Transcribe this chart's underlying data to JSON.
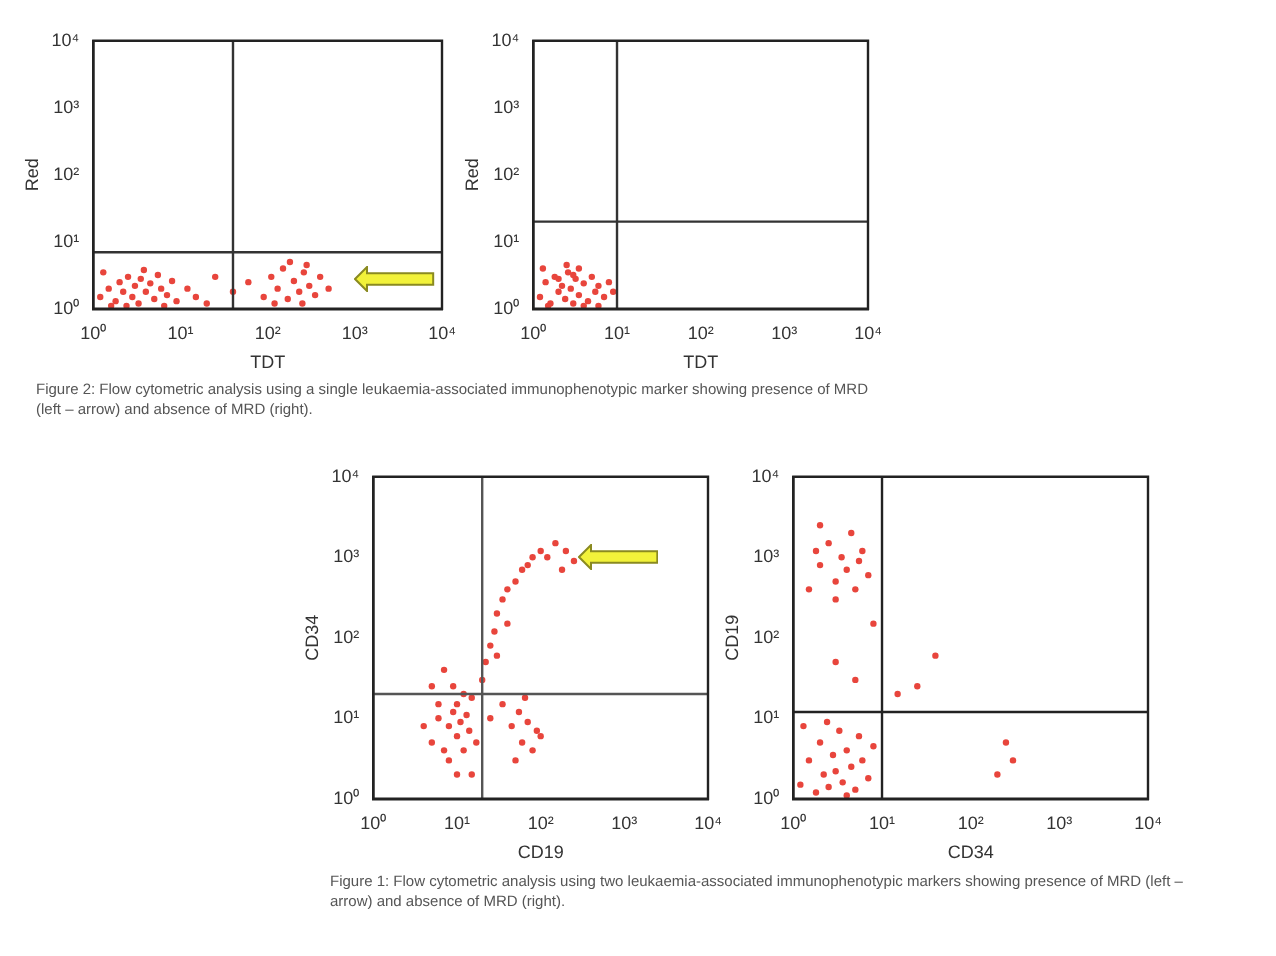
{
  "chart_data": [
    {
      "type": "scatter",
      "xlabel": "TDT",
      "ylabel": "Red",
      "log": "xy",
      "grid": false,
      "legend": false,
      "marker": "circle",
      "xlim": [
        1,
        10000
      ],
      "ylim": [
        1,
        10000
      ],
      "xticks": [
        {
          "value": 1,
          "label": "10⁰"
        },
        {
          "value": 10,
          "label": "10¹"
        },
        {
          "value": 100,
          "label": "10²"
        },
        {
          "value": 1000,
          "label": "10³"
        },
        {
          "value": 10000,
          "label": "10⁴"
        }
      ],
      "yticks": [
        {
          "value": 1,
          "label": "10⁰"
        },
        {
          "value": 10,
          "label": "10¹"
        },
        {
          "value": 100,
          "label": "10²"
        },
        {
          "value": 1000,
          "label": "10³"
        },
        {
          "value": 10000,
          "label": "10⁴"
        }
      ],
      "ref_lines": [
        {
          "axis": "x",
          "value": 40,
          "color": "#333333"
        },
        {
          "axis": "y",
          "value": 7,
          "color": "#333333"
        }
      ],
      "annotations": [
        "Figure 2: Flow cytometric analysis using a single leukaemia-associated immunophenotypic marker showing presence of MRD (left – arrow) and absence of MRD (right)."
      ],
      "series": [
        {
          "color": "#e8453c",
          "x": [
            1.2,
            1.5,
            1.8,
            2,
            2.2,
            2.5,
            2.8,
            3,
            3.3,
            3.5,
            4,
            4.5,
            5,
            5.5,
            6,
            7,
            8,
            9,
            12,
            1.3,
            1.6,
            2.4,
            3.8,
            6.5,
            15,
            25,
            40,
            60,
            90,
            110,
            130,
            150,
            170,
            200,
            230,
            260,
            300,
            350,
            400,
            120,
            180,
            250,
            280,
            20,
            500
          ],
          "values": [
            1.5,
            2,
            1.3,
            2.5,
            1.8,
            3,
            1.5,
            2.2,
            1.2,
            2.8,
            1.8,
            2.4,
            1.4,
            3.2,
            2,
            1.6,
            2.6,
            1.3,
            2,
            3.5,
            1.1,
            1.1,
            3.8,
            1.1,
            1.5,
            3,
            1.8,
            2.5,
            1.5,
            3,
            2,
            4,
            1.4,
            2.6,
            1.8,
            3.5,
            2.2,
            1.6,
            3,
            1.2,
            5,
            1.2,
            4.5,
            1.2,
            2
          ]
        }
      ]
    },
    {
      "type": "scatter",
      "xlabel": "TDT",
      "ylabel": "Red",
      "log": "xy",
      "grid": false,
      "legend": false,
      "marker": "circle",
      "xlim": [
        1,
        10000
      ],
      "ylim": [
        1,
        10000
      ],
      "xticks": [
        {
          "value": 1,
          "label": "10⁰"
        },
        {
          "value": 10,
          "label": "10¹"
        },
        {
          "value": 100,
          "label": "10²"
        },
        {
          "value": 1000,
          "label": "10³"
        },
        {
          "value": 10000,
          "label": "10⁴"
        }
      ],
      "yticks": [
        {
          "value": 1,
          "label": "10⁰"
        },
        {
          "value": 10,
          "label": "10¹"
        },
        {
          "value": 100,
          "label": "10²"
        },
        {
          "value": 1000,
          "label": "10³"
        },
        {
          "value": 10000,
          "label": "10⁴"
        }
      ],
      "ref_lines": [
        {
          "axis": "x",
          "value": 10,
          "color": "#333333"
        },
        {
          "axis": "y",
          "value": 20,
          "color": "#333333"
        }
      ],
      "series": [
        {
          "color": "#e8453c",
          "x": [
            1.2,
            1.4,
            1.6,
            1.8,
            2,
            2.2,
            2.4,
            2.6,
            2.8,
            3,
            3.2,
            3.5,
            4,
            4.5,
            5,
            5.5,
            6,
            7,
            8,
            1.3,
            2.5,
            3.5,
            1.5,
            4,
            6,
            2,
            3,
            9
          ],
          "values": [
            1.5,
            2.5,
            1.2,
            3,
            1.8,
            2.2,
            1.4,
            3.5,
            2,
            1.2,
            2.8,
            1.6,
            2.4,
            1.3,
            3,
            1.8,
            2.2,
            1.5,
            2.5,
            4,
            4.5,
            4,
            1.1,
            1.1,
            1.1,
            2.8,
            3.2,
            1.8
          ]
        }
      ]
    },
    {
      "type": "scatter",
      "xlabel": "CD19",
      "ylabel": "CD34",
      "log": "xy",
      "grid": false,
      "legend": false,
      "marker": "circle",
      "xlim": [
        1,
        10000
      ],
      "ylim": [
        1,
        10000
      ],
      "xticks": [
        {
          "value": 1,
          "label": "10⁰"
        },
        {
          "value": 10,
          "label": "10¹"
        },
        {
          "value": 100,
          "label": "10²"
        },
        {
          "value": 1000,
          "label": "10³"
        },
        {
          "value": 10000,
          "label": "10⁴"
        }
      ],
      "yticks": [
        {
          "value": 1,
          "label": "10⁰"
        },
        {
          "value": 10,
          "label": "10¹"
        },
        {
          "value": 100,
          "label": "10²"
        },
        {
          "value": 1000,
          "label": "10³"
        },
        {
          "value": 10000,
          "label": "10⁴"
        }
      ],
      "ref_lines": [
        {
          "axis": "x",
          "value": 20,
          "color": "#555555"
        },
        {
          "axis": "y",
          "value": 20,
          "color": "#555555"
        }
      ],
      "annotations": [
        "Figure 1: Flow cytometric analysis using two leukaemia-associated immunophenotypic markers showing presence of MRD (left – arrow) and absence of MRD (right)."
      ],
      "series": [
        {
          "color": "#e8453c",
          "x": [
            5,
            6,
            7,
            8,
            9,
            10,
            10,
            11,
            12,
            13,
            14,
            15,
            8,
            6,
            12,
            4,
            17,
            9,
            20,
            22,
            25,
            28,
            30,
            35,
            40,
            50,
            60,
            70,
            80,
            100,
            120,
            150,
            200,
            250,
            180,
            40,
            30,
            35,
            45,
            55,
            60,
            70,
            80,
            90,
            50,
            100,
            65,
            25,
            15,
            10,
            7,
            5
          ],
          "values": [
            5,
            10,
            4,
            8,
            12,
            6,
            15,
            9,
            4,
            11,
            7,
            18,
            3,
            15,
            20,
            8,
            5,
            25,
            30,
            50,
            80,
            120,
            200,
            300,
            400,
            500,
            700,
            800,
            1000,
            1200,
            1000,
            1500,
            1200,
            900,
            700,
            150,
            60,
            15,
            8,
            12,
            5,
            9,
            4,
            7,
            3,
            6,
            18,
            10,
            2,
            2,
            40,
            25
          ]
        }
      ]
    },
    {
      "type": "scatter",
      "xlabel": "CD34",
      "ylabel": "CD19",
      "log": "xy",
      "grid": false,
      "legend": false,
      "marker": "circle",
      "xlim": [
        1,
        10000
      ],
      "ylim": [
        1,
        10000
      ],
      "xticks": [
        {
          "value": 1,
          "label": "10⁰"
        },
        {
          "value": 10,
          "label": "10¹"
        },
        {
          "value": 100,
          "label": "10²"
        },
        {
          "value": 1000,
          "label": "10³"
        },
        {
          "value": 10000,
          "label": "10⁴"
        }
      ],
      "yticks": [
        {
          "value": 1,
          "label": "10⁰"
        },
        {
          "value": 10,
          "label": "10¹"
        },
        {
          "value": 100,
          "label": "10²"
        },
        {
          "value": 1000,
          "label": "10³"
        },
        {
          "value": 10000,
          "label": "10⁴"
        }
      ],
      "ref_lines": [
        {
          "axis": "x",
          "value": 10,
          "color": "#222222"
        },
        {
          "axis": "y",
          "value": 12,
          "color": "#222222"
        }
      ],
      "series": [
        {
          "color": "#e8453c",
          "x": [
            1.2,
            1.5,
            1.8,
            2,
            2.2,
            2.5,
            2.8,
            3,
            3.3,
            3.6,
            4,
            4.5,
            5,
            5.5,
            6,
            7,
            8,
            1.3,
            2.4,
            4,
            1.5,
            2,
            2.5,
            3,
            3.5,
            4,
            4.5,
            5,
            6,
            7,
            2,
            3,
            1.8,
            5.5,
            3,
            5,
            15,
            25,
            40,
            250,
            300,
            200,
            8
          ],
          "values": [
            1.5,
            3,
            1.2,
            5,
            2,
            1.4,
            3.5,
            2.2,
            7,
            1.6,
            4,
            2.5,
            1.3,
            6,
            3,
            1.8,
            4.5,
            8,
            9,
            1.1,
            400,
            800,
            1500,
            500,
            1000,
            700,
            2000,
            400,
            1200,
            600,
            2500,
            300,
            1200,
            900,
            50,
            30,
            20,
            25,
            60,
            5,
            3,
            2,
            150
          ]
        }
      ]
    }
  ]
}
